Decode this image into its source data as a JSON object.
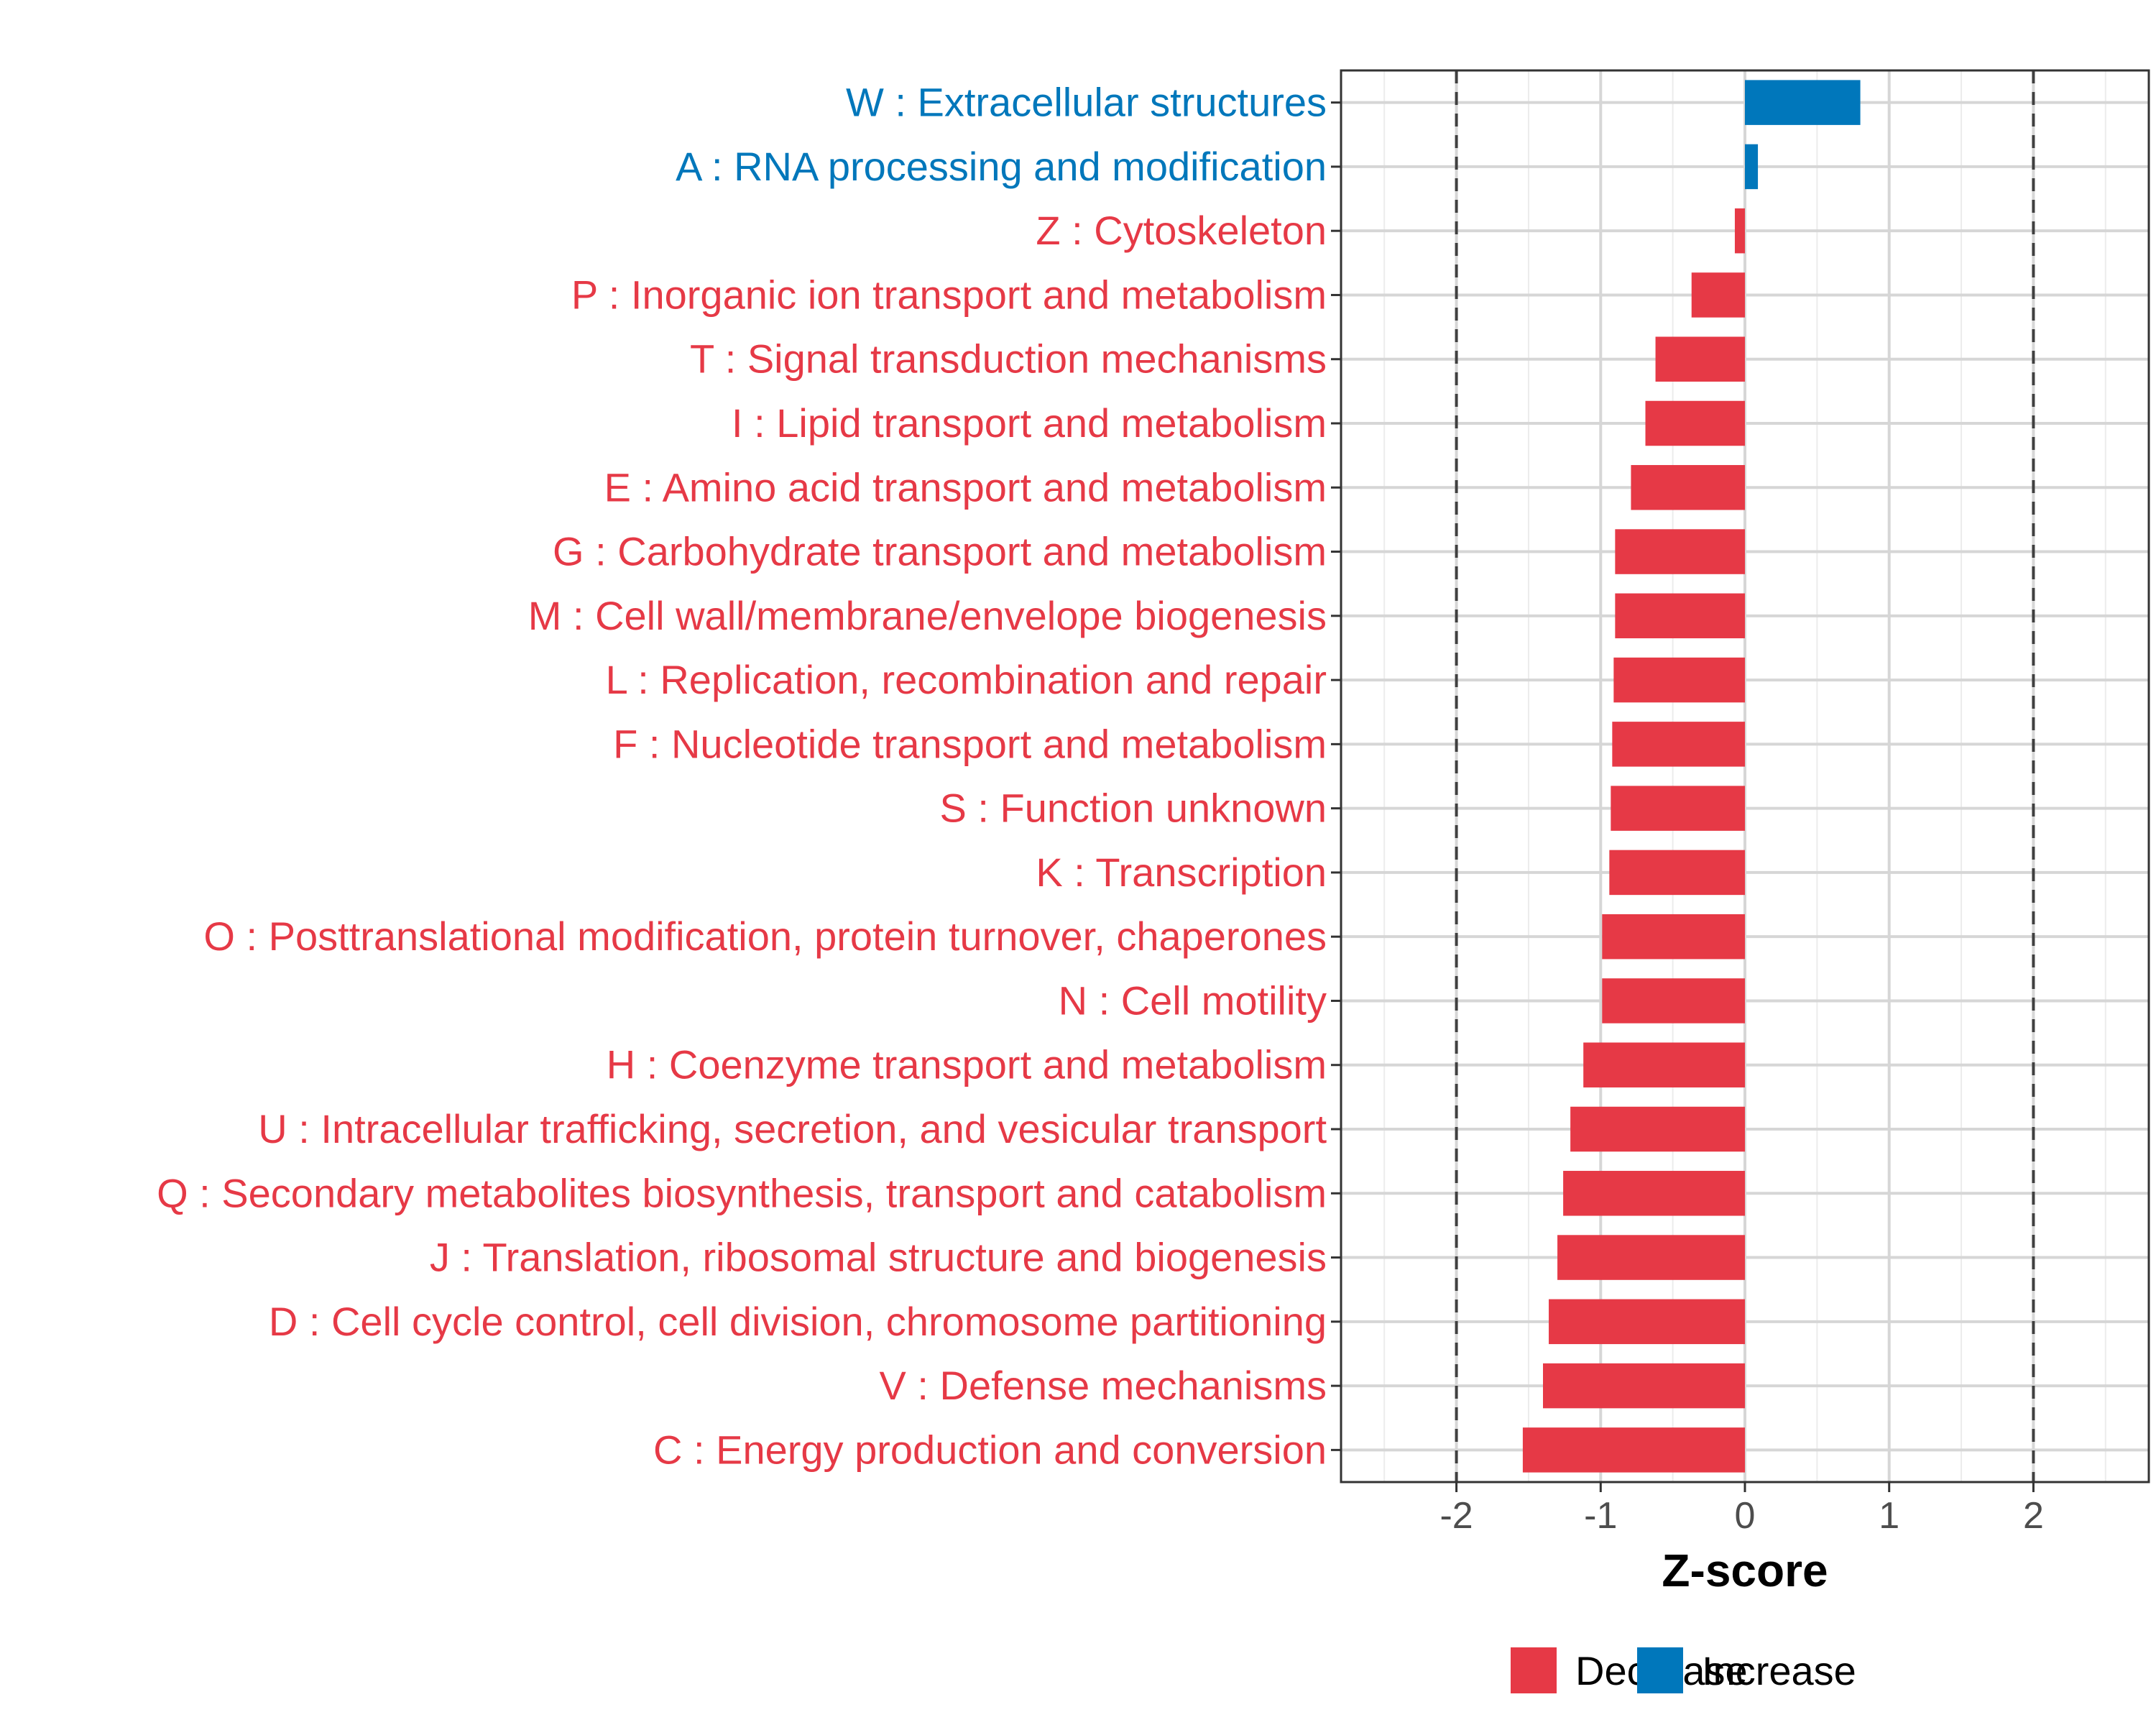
{
  "chart_data": {
    "type": "bar",
    "orientation": "horizontal",
    "title": "",
    "xlabel": "Z-score",
    "ylabel": "",
    "xlim": [
      -2.8,
      2.8
    ],
    "x_ticks": [
      -2,
      -1,
      0,
      1,
      2
    ],
    "x_tick_labels": [
      "-2",
      "-1",
      "0",
      "1",
      "2"
    ],
    "reference_lines": [
      -2,
      2
    ],
    "grid": true,
    "categories": [
      "W : Extracellular structures",
      "A : RNA processing and modification",
      "Z : Cytoskeleton",
      "P : Inorganic ion transport and metabolism",
      "T : Signal transduction mechanisms",
      "I : Lipid transport and metabolism",
      "E : Amino acid transport and metabolism",
      "G : Carbohydrate transport and metabolism",
      "M : Cell wall/membrane/envelope biogenesis",
      "L : Replication, recombination and repair",
      "F : Nucleotide transport and metabolism",
      "S : Function unknown",
      "K : Transcription",
      "O : Posttranslational modification, protein turnover, chaperones",
      "N : Cell motility",
      "H : Coenzyme transport and metabolism",
      "U : Intracellular trafficking, secretion, and vesicular transport",
      "Q : Secondary metabolites biosynthesis, transport and catabolism",
      "J : Translation, ribosomal structure and biogenesis",
      "D : Cell cycle control, cell division, chromosome partitioning",
      "V : Defense mechanisms",
      "C : Energy production and conversion"
    ],
    "values": [
      0.8,
      0.09,
      -0.07,
      -0.37,
      -0.62,
      -0.69,
      -0.79,
      -0.9,
      -0.9,
      -0.91,
      -0.92,
      -0.93,
      -0.94,
      -0.99,
      -0.99,
      -1.12,
      -1.21,
      -1.26,
      -1.3,
      -1.36,
      -1.4,
      -1.54
    ],
    "groups": [
      "Increase",
      "Increase",
      "Decrease",
      "Decrease",
      "Decrease",
      "Decrease",
      "Decrease",
      "Decrease",
      "Decrease",
      "Decrease",
      "Decrease",
      "Decrease",
      "Decrease",
      "Decrease",
      "Decrease",
      "Decrease",
      "Decrease",
      "Decrease",
      "Decrease",
      "Decrease",
      "Decrease",
      "Decrease"
    ],
    "legend": {
      "position": "bottom",
      "entries": [
        {
          "label": "Decrease",
          "color": "#E63946"
        },
        {
          "label": "Increase",
          "color": "#0077BB"
        }
      ]
    }
  }
}
